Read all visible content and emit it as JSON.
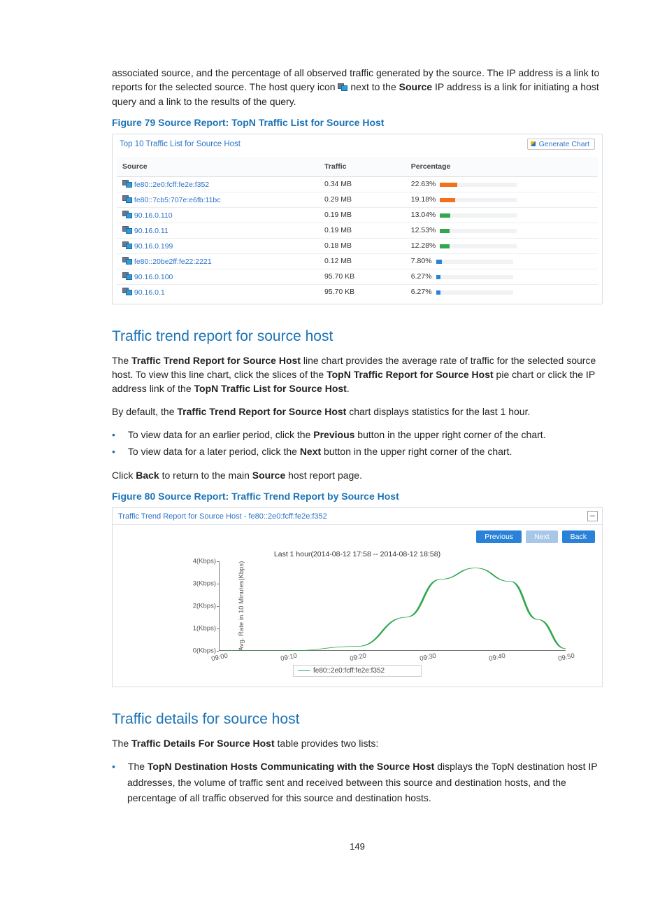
{
  "intro": {
    "p1a": "associated source, and the percentage of all observed traffic generated by the source. The IP address is a link to reports for the selected source. The host query icon ",
    "p1b": " next to the ",
    "p1c": "Source",
    "p1d": " IP address is a link for initiating a host query and a link to the results of the query."
  },
  "fig79": {
    "caption": "Figure 79 Source Report: TopN Traffic List for Source Host",
    "panel_title": "Top 10 Traffic List for Source Host",
    "gen_chart": "Generate Chart",
    "columns": {
      "source": "Source",
      "traffic": "Traffic",
      "percentage": "Percentage"
    },
    "rows": [
      {
        "source": "fe80::2e0:fcff:fe2e:f352",
        "traffic": "0.34 MB",
        "percentage": "22.63%",
        "bar_pct": 22.63,
        "color": "#f2711c"
      },
      {
        "source": "fe80::7cb5:707e:e6fb:11bc",
        "traffic": "0.29 MB",
        "percentage": "19.18%",
        "bar_pct": 19.18,
        "color": "#f2711c"
      },
      {
        "source": "90.16.0.110",
        "traffic": "0.19 MB",
        "percentage": "13.04%",
        "bar_pct": 13.04,
        "color": "#2fa84f"
      },
      {
        "source": "90.16.0.11",
        "traffic": "0.19 MB",
        "percentage": "12.53%",
        "bar_pct": 12.53,
        "color": "#2fa84f"
      },
      {
        "source": "90.16.0.199",
        "traffic": "0.18 MB",
        "percentage": "12.28%",
        "bar_pct": 12.28,
        "color": "#2fa84f"
      },
      {
        "source": "fe80::20be2ff:fe22:2221",
        "traffic": "0.12 MB",
        "percentage": "7.80%",
        "bar_pct": 7.8,
        "color": "#2a82d8"
      },
      {
        "source": "90.16.0.100",
        "traffic": "95.70 KB",
        "percentage": "6.27%",
        "bar_pct": 6.27,
        "color": "#2a82d8"
      },
      {
        "source": "90.16.0.1",
        "traffic": "95.70 KB",
        "percentage": "6.27%",
        "bar_pct": 6.27,
        "color": "#2a82d8"
      }
    ],
    "bar_track_color": "#f1f2f4"
  },
  "sect_trend": {
    "heading": "Traffic trend report for source host",
    "p1": "The Traffic Trend Report for Source Host line chart provides the average rate of traffic for the selected source host. To view this line chart, click the slices of the TopN Traffic Report for Source Host pie chart or click the IP address link of the TopN Traffic List for Source Host.",
    "p2": "By default, the Traffic Trend Report for Source Host chart displays statistics for the last 1 hour.",
    "bullets": [
      "To view data for an earlier period, click the Previous button in the upper right corner of the chart.",
      "To view data for a later period, click the Next button in the upper right corner of the chart."
    ],
    "p3": "Click Back to return to the main Source host report page.",
    "bold_terms": [
      "Traffic Trend Report for Source Host",
      "TopN Traffic Report for Source Host",
      "TopN Traffic List for Source Host",
      "Previous",
      "Next",
      "Back",
      "Source"
    ]
  },
  "fig80": {
    "caption": "Figure 80 Source Report: Traffic Trend Report by Source Host",
    "panel_title": "Traffic Trend Report for Source Host - fe80::2e0:fcff:fe2e:f352",
    "collapse": "–",
    "buttons": {
      "prev": "Previous",
      "next": "Next",
      "back": "Back"
    },
    "chart": {
      "title": "Last 1 hour(2014-08-12 17:58 -- 2014-08-12 18:58)",
      "ylabel": "Avg. Rate in 10 Minutes(Kbps)",
      "yticks": [
        "0(Kbps)",
        "1(Kbps)",
        "2(Kbps)",
        "3(Kbps)",
        "4(Kbps)"
      ],
      "ymax": 4,
      "xticks": [
        "09:00",
        "09:10",
        "09:20",
        "09:30",
        "09:40",
        "09:50"
      ],
      "series_label": "fe80::2e0:fcff:fe2e:f352",
      "line_color": "#2fa84f",
      "points": [
        {
          "x": 0,
          "y": 0
        },
        {
          "x": 1,
          "y": 0
        },
        {
          "x": 2,
          "y": 0.2
        },
        {
          "x": 2.7,
          "y": 1.5
        },
        {
          "x": 3.2,
          "y": 3.2
        },
        {
          "x": 3.7,
          "y": 3.7
        },
        {
          "x": 4.2,
          "y": 3.1
        },
        {
          "x": 4.6,
          "y": 1.4
        },
        {
          "x": 5,
          "y": 0.1
        }
      ]
    }
  },
  "sect_details": {
    "heading": "Traffic details for source host",
    "p1": "The Traffic Details For Source Host table provides two lists:",
    "bullet1": "The TopN Destination Hosts Communicating with the Source Host displays the TopN destination host IP addresses, the volume of traffic sent and received between this source and destination hosts, and the percentage of all traffic observed for this source and destination hosts.",
    "bold_terms": [
      "Traffic Details For Source Host",
      "TopN Destination Hosts Communicating with the Source Host"
    ]
  },
  "page_number": "149"
}
